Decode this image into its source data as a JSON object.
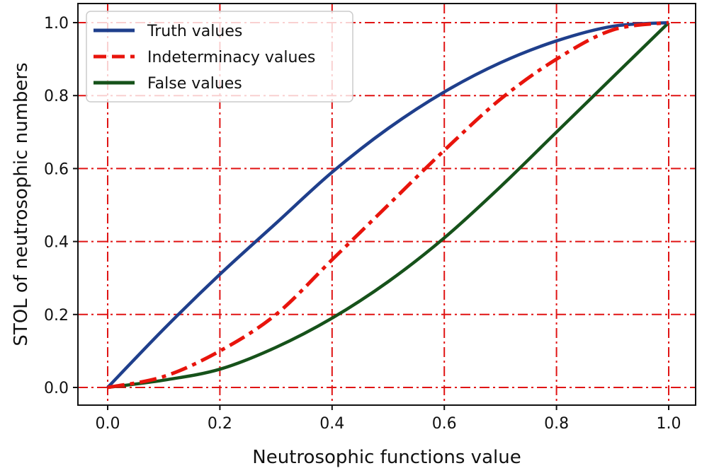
{
  "chart_data": {
    "type": "line",
    "title": "",
    "xlabel": "Neutrosophic functions value",
    "ylabel": "STOL of neutrosophic numbers",
    "xlim": [
      0.0,
      1.0
    ],
    "ylim": [
      0.0,
      1.0
    ],
    "xticks": [
      "0.0",
      "0.2",
      "0.4",
      "0.6",
      "0.8",
      "1.0"
    ],
    "yticks": [
      "0.0",
      "0.2",
      "0.4",
      "0.6",
      "0.8",
      "1.0"
    ],
    "grid": true,
    "legend_position": "top-left",
    "x": [
      0.0,
      0.1,
      0.2,
      0.3,
      0.4,
      0.5,
      0.6,
      0.7,
      0.8,
      0.9,
      1.0
    ],
    "series": [
      {
        "name": "Truth values",
        "color": "#1f3f8c",
        "style": "solid",
        "values": [
          0.0,
          0.16,
          0.31,
          0.45,
          0.59,
          0.71,
          0.81,
          0.89,
          0.95,
          0.99,
          1.0
        ]
      },
      {
        "name": "Indeterminacy values",
        "color": "#e8140c",
        "style": "dashdot",
        "values": [
          0.0,
          0.03,
          0.1,
          0.2,
          0.35,
          0.5,
          0.65,
          0.79,
          0.9,
          0.98,
          1.0
        ]
      },
      {
        "name": "False values",
        "color": "#16521a",
        "style": "solid",
        "values": [
          0.0,
          0.02,
          0.05,
          0.11,
          0.19,
          0.29,
          0.41,
          0.55,
          0.7,
          0.85,
          1.0
        ]
      }
    ],
    "grid_color": "#e01414"
  }
}
